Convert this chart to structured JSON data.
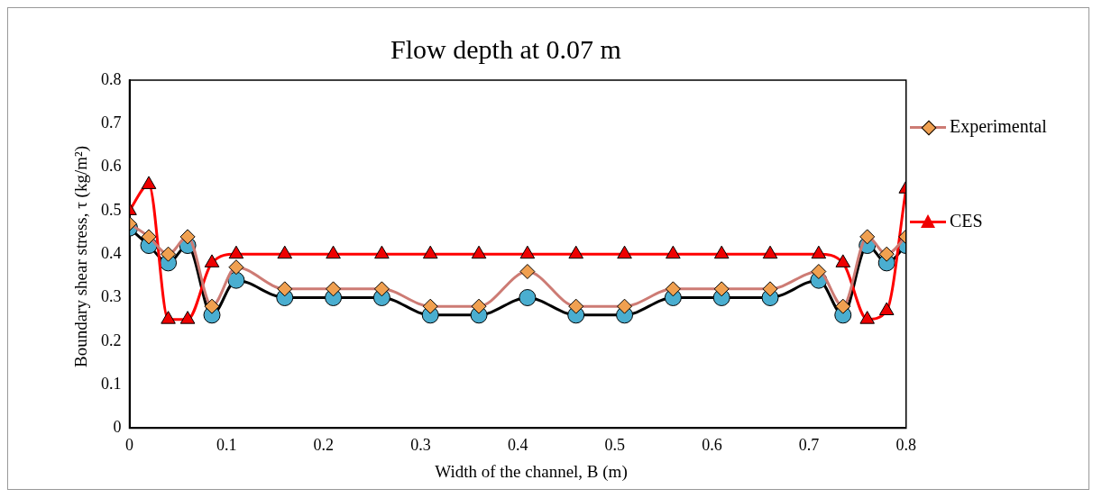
{
  "chart_data": {
    "type": "line",
    "title": "Flow depth at 0.07 m",
    "xlabel": "Width of the channel, B (m)",
    "ylabel": "Boundary shear stress, τ (kg/m²)",
    "x": [
      0,
      0.02,
      0.04,
      0.06,
      0.085,
      0.11,
      0.16,
      0.21,
      0.26,
      0.31,
      0.36,
      0.41,
      0.46,
      0.51,
      0.56,
      0.61,
      0.66,
      0.71,
      0.735,
      0.76,
      0.78,
      0.8
    ],
    "series": [
      {
        "name": "Experimental",
        "color": "#cd7b74",
        "marker": "diamond",
        "values": [
          0.47,
          0.44,
          0.4,
          0.44,
          0.28,
          0.37,
          0.32,
          0.32,
          0.32,
          0.28,
          0.28,
          0.36,
          0.28,
          0.28,
          0.32,
          0.32,
          0.32,
          0.36,
          0.28,
          0.44,
          0.4,
          0.44
        ]
      },
      {
        "name": "CES",
        "color": "#ff0000",
        "marker": "triangle",
        "values": [
          0.5,
          0.56,
          0.25,
          0.25,
          0.38,
          0.4,
          0.4,
          0.4,
          0.4,
          0.4,
          0.4,
          0.4,
          0.4,
          0.4,
          0.4,
          0.4,
          0.4,
          0.4,
          0.38,
          0.25,
          0.27,
          0.55
        ]
      },
      {
        "color": "#000000",
        "marker": "circle",
        "values": [
          0.46,
          0.42,
          0.38,
          0.42,
          0.26,
          0.34,
          0.3,
          0.3,
          0.3,
          0.26,
          0.26,
          0.3,
          0.26,
          0.26,
          0.3,
          0.3,
          0.3,
          0.34,
          0.26,
          0.42,
          0.38,
          0.42
        ]
      }
    ],
    "xlim": [
      0,
      0.8
    ],
    "xticks": [
      0,
      0.1,
      0.2,
      0.3,
      0.4,
      0.5,
      0.6,
      0.7,
      0.8
    ],
    "ylim": [
      0,
      0.8
    ],
    "yticks": [
      0,
      0.1,
      0.2,
      0.3,
      0.4,
      0.5,
      0.6,
      0.7,
      0.8
    ],
    "grid": false,
    "legend": "right"
  }
}
